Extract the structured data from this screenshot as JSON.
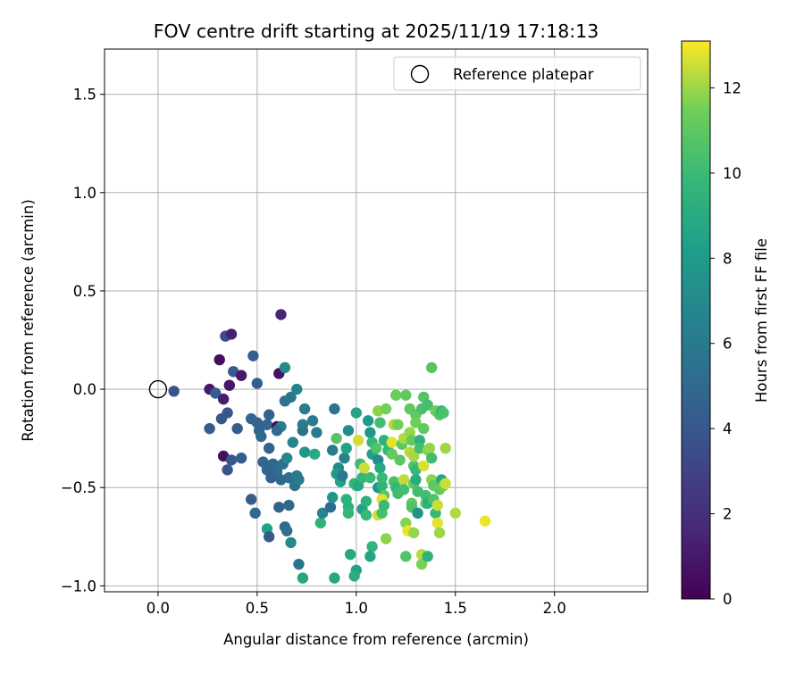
{
  "chart_data": {
    "type": "scatter",
    "title": "FOV centre drift starting at 2025/11/19 17:18:13",
    "xlabel": "Angular distance from reference (arcmin)",
    "ylabel": "Rotation from reference (arcmin)",
    "xlim": [
      -0.27,
      2.47
    ],
    "ylim": [
      -1.03,
      1.73
    ],
    "x_ticks": [
      0.0,
      0.5,
      1.0,
      1.5,
      2.0
    ],
    "x_tick_labels": [
      "0.0",
      "0.5",
      "1.0",
      "1.5",
      "2.0"
    ],
    "y_ticks": [
      -1.0,
      -0.5,
      0.0,
      0.5,
      1.0,
      1.5
    ],
    "y_tick_labels": [
      "−1.0",
      "−0.5",
      "0.0",
      "0.5",
      "1.0",
      "1.5"
    ],
    "grid": true,
    "legend": {
      "position": "top-right",
      "entries": [
        "Reference platepar"
      ]
    },
    "reference_point": {
      "x": 0.0,
      "y": 0.0
    },
    "colorbar": {
      "label": "Hours from first FF file",
      "range": [
        0,
        13.1
      ],
      "ticks": [
        0,
        2,
        4,
        6,
        8,
        10,
        12
      ],
      "tick_labels": [
        "0",
        "2",
        "4",
        "6",
        "8",
        "10",
        "12"
      ],
      "colormap": "viridis"
    },
    "points": [
      [
        0.08,
        -0.01,
        3.8
      ],
      [
        0.26,
        0.0,
        1.0
      ],
      [
        0.29,
        -0.02,
        4.4
      ],
      [
        0.31,
        0.15,
        0.6
      ],
      [
        0.33,
        -0.05,
        1.2
      ],
      [
        0.34,
        0.27,
        3.5
      ],
      [
        0.37,
        0.28,
        1.3
      ],
      [
        0.36,
        0.02,
        0.9
      ],
      [
        0.38,
        0.09,
        4.2
      ],
      [
        0.42,
        0.07,
        1.0
      ],
      [
        0.35,
        -0.12,
        3.9
      ],
      [
        0.32,
        -0.15,
        4.0
      ],
      [
        0.26,
        -0.2,
        4.3
      ],
      [
        0.33,
        -0.34,
        0.6
      ],
      [
        0.35,
        -0.41,
        3.9
      ],
      [
        0.37,
        -0.36,
        4.1
      ],
      [
        0.4,
        -0.2,
        4.3
      ],
      [
        0.42,
        -0.35,
        4.4
      ],
      [
        0.48,
        0.17,
        4.5
      ],
      [
        0.5,
        0.03,
        4.4
      ],
      [
        0.47,
        -0.15,
        4.6
      ],
      [
        0.5,
        -0.17,
        4.7
      ],
      [
        0.51,
        -0.21,
        4.8
      ],
      [
        0.52,
        -0.24,
        5.0
      ],
      [
        0.55,
        -0.18,
        4.8
      ],
      [
        0.56,
        -0.13,
        4.6
      ],
      [
        0.6,
        -0.19,
        0.3
      ],
      [
        0.62,
        0.38,
        1.5
      ],
      [
        0.61,
        0.08,
        0.7
      ],
      [
        0.64,
        0.11,
        7.0
      ],
      [
        0.64,
        -0.06,
        5.5
      ],
      [
        0.67,
        -0.04,
        5.8
      ],
      [
        0.7,
        0.0,
        6.6
      ],
      [
        0.68,
        -0.27,
        6.8
      ],
      [
        0.62,
        -0.19,
        6.5
      ],
      [
        0.6,
        -0.21,
        5.2
      ],
      [
        0.56,
        -0.3,
        4.6
      ],
      [
        0.53,
        -0.37,
        4.8
      ],
      [
        0.58,
        -0.38,
        5.0
      ],
      [
        0.6,
        -0.42,
        5.2
      ],
      [
        0.63,
        -0.38,
        5.4
      ],
      [
        0.65,
        -0.35,
        6.8
      ],
      [
        0.66,
        -0.45,
        5.4
      ],
      [
        0.69,
        -0.49,
        5.6
      ],
      [
        0.7,
        -0.44,
        6.0
      ],
      [
        0.71,
        -0.46,
        6.1
      ],
      [
        0.62,
        -0.46,
        5.0
      ],
      [
        0.57,
        -0.45,
        4.6
      ],
      [
        0.55,
        -0.41,
        4.7
      ],
      [
        0.47,
        -0.56,
        4.3
      ],
      [
        0.49,
        -0.63,
        5.0
      ],
      [
        0.55,
        -0.71,
        8.5
      ],
      [
        0.56,
        -0.75,
        4.3
      ],
      [
        0.61,
        -0.6,
        4.6
      ],
      [
        0.64,
        -0.7,
        5.2
      ],
      [
        0.65,
        -0.72,
        5.3
      ],
      [
        0.66,
        -0.59,
        5.0
      ],
      [
        0.67,
        -0.78,
        6.9
      ],
      [
        0.71,
        -0.89,
        5.6
      ],
      [
        0.73,
        -0.96,
        8.7
      ],
      [
        0.73,
        -0.21,
        5.3
      ],
      [
        0.74,
        -0.1,
        6.3
      ],
      [
        0.73,
        -0.18,
        6.1
      ],
      [
        0.78,
        -0.16,
        6.1
      ],
      [
        0.8,
        -0.22,
        6.2
      ],
      [
        0.74,
        -0.32,
        7.8
      ],
      [
        0.79,
        -0.33,
        9.0
      ],
      [
        0.82,
        -0.68,
        9.5
      ],
      [
        0.83,
        -0.63,
        6.7
      ],
      [
        0.87,
        -0.6,
        5.2
      ],
      [
        0.88,
        -0.55,
        7.7
      ],
      [
        0.88,
        -0.31,
        6.0
      ],
      [
        0.89,
        -0.1,
        5.7
      ],
      [
        0.9,
        -0.25,
        10.8
      ],
      [
        0.91,
        -0.4,
        7.1
      ],
      [
        0.9,
        -0.43,
        8.0
      ],
      [
        0.92,
        -0.47,
        8.4
      ],
      [
        0.93,
        -0.44,
        6.0
      ],
      [
        0.94,
        -0.35,
        6.4
      ],
      [
        0.95,
        -0.3,
        8.5
      ],
      [
        0.96,
        -0.21,
        7.1
      ],
      [
        0.95,
        -0.56,
        9.4
      ],
      [
        0.96,
        -0.6,
        9.3
      ],
      [
        0.96,
        -0.63,
        9.8
      ],
      [
        0.97,
        -0.84,
        8.8
      ],
      [
        0.89,
        -0.96,
        8.7
      ],
      [
        0.99,
        -0.48,
        9.4
      ],
      [
        1.0,
        -0.49,
        10.0
      ],
      [
        1.01,
        -0.49,
        8.8
      ],
      [
        1.0,
        -0.12,
        8.6
      ],
      [
        1.01,
        -0.26,
        12.6
      ],
      [
        1.02,
        -0.38,
        10.1
      ],
      [
        1.03,
        -0.45,
        9.8
      ],
      [
        1.03,
        -0.61,
        8.3
      ],
      [
        1.05,
        -0.57,
        9.4
      ],
      [
        1.05,
        -0.64,
        9.9
      ],
      [
        1.04,
        -0.4,
        12.5
      ],
      [
        1.06,
        -0.16,
        8.0
      ],
      [
        1.07,
        -0.22,
        7.7
      ],
      [
        1.08,
        -0.27,
        9.8
      ],
      [
        1.08,
        -0.33,
        8.4
      ],
      [
        1.07,
        -0.45,
        10.0
      ],
      [
        1.08,
        -0.8,
        9.6
      ],
      [
        1.07,
        -0.85,
        8.6
      ],
      [
        1.0,
        -0.92,
        8.5
      ],
      [
        0.99,
        -0.95,
        9.2
      ],
      [
        1.1,
        -0.3,
        10.6
      ],
      [
        1.11,
        -0.11,
        11.8
      ],
      [
        1.12,
        -0.17,
        10.2
      ],
      [
        1.11,
        -0.36,
        7.2
      ],
      [
        1.12,
        -0.4,
        8.8
      ],
      [
        1.11,
        -0.5,
        7.6
      ],
      [
        1.13,
        -0.49,
        9.5
      ],
      [
        1.14,
        -0.54,
        10.8
      ],
      [
        1.13,
        -0.56,
        12.8
      ],
      [
        1.11,
        -0.64,
        12.6
      ],
      [
        1.13,
        -0.63,
        10.4
      ],
      [
        1.14,
        -0.59,
        10.0
      ],
      [
        1.13,
        -0.45,
        10.0
      ],
      [
        1.14,
        -0.26,
        9.4
      ],
      [
        1.15,
        -0.1,
        11.5
      ],
      [
        1.16,
        -0.31,
        9.8
      ],
      [
        1.15,
        -0.76,
        11.8
      ],
      [
        1.18,
        -0.27,
        12.8
      ],
      [
        1.18,
        -0.33,
        11.2
      ],
      [
        1.19,
        -0.18,
        12.2
      ],
      [
        1.2,
        -0.03,
        11.3
      ],
      [
        1.19,
        -0.47,
        10.5
      ],
      [
        1.2,
        -0.5,
        9.8
      ],
      [
        1.21,
        -0.53,
        10.2
      ],
      [
        1.21,
        -0.18,
        11.5
      ],
      [
        1.22,
        -0.36,
        10.9
      ],
      [
        1.23,
        -0.28,
        11.0
      ],
      [
        1.24,
        -0.25,
        12.2
      ],
      [
        1.24,
        -0.46,
        12.4
      ],
      [
        1.24,
        -0.51,
        10.3
      ],
      [
        1.25,
        -0.03,
        11.1
      ],
      [
        1.25,
        -0.68,
        11.7
      ],
      [
        1.26,
        -0.72,
        12.9
      ],
      [
        1.25,
        -0.85,
        10.7
      ],
      [
        1.27,
        -0.32,
        12.3
      ],
      [
        1.27,
        -0.22,
        11.9
      ],
      [
        1.27,
        -0.1,
        11.0
      ],
      [
        1.28,
        -0.26,
        11.2
      ],
      [
        1.28,
        -0.58,
        11.0
      ],
      [
        1.28,
        -0.6,
        10.6
      ],
      [
        1.29,
        -0.73,
        11.9
      ],
      [
        1.29,
        -0.48,
        11.2
      ],
      [
        1.29,
        -0.39,
        10.6
      ],
      [
        1.29,
        -0.34,
        12.1
      ],
      [
        1.3,
        -0.13,
        11.1
      ],
      [
        1.3,
        -0.17,
        11.4
      ],
      [
        1.3,
        -0.41,
        9.8
      ],
      [
        1.3,
        -0.46,
        9.1
      ],
      [
        1.31,
        -0.52,
        10.2
      ],
      [
        1.31,
        -0.63,
        7.5
      ],
      [
        1.32,
        -0.26,
        9.5
      ],
      [
        1.32,
        -0.3,
        10.2
      ],
      [
        1.33,
        -0.84,
        12.3
      ],
      [
        1.33,
        -0.89,
        11.6
      ],
      [
        1.33,
        -0.1,
        10.4
      ],
      [
        1.34,
        -0.04,
        10.7
      ],
      [
        1.34,
        -0.2,
        11.1
      ],
      [
        1.34,
        -0.39,
        12.7
      ],
      [
        1.35,
        -0.58,
        11.5
      ],
      [
        1.35,
        -0.54,
        10.2
      ],
      [
        1.36,
        -0.58,
        9.3
      ],
      [
        1.36,
        -0.85,
        9.4
      ],
      [
        1.36,
        -0.08,
        10.3
      ],
      [
        1.36,
        -0.31,
        11.7
      ],
      [
        1.37,
        -0.3,
        11.9
      ],
      [
        1.38,
        -0.46,
        11.8
      ],
      [
        1.38,
        0.11,
        10.8
      ],
      [
        1.38,
        -0.35,
        10.1
      ],
      [
        1.39,
        -0.49,
        11.0
      ],
      [
        1.39,
        -0.56,
        10.6
      ],
      [
        1.4,
        -0.63,
        9.9
      ],
      [
        1.4,
        -0.11,
        11.4
      ],
      [
        1.41,
        -0.59,
        12.5
      ],
      [
        1.41,
        -0.68,
        12.8
      ],
      [
        1.42,
        -0.73,
        12.0
      ],
      [
        1.42,
        -0.51,
        11.1
      ],
      [
        1.42,
        -0.13,
        10.6
      ],
      [
        1.43,
        -0.46,
        8.8
      ],
      [
        1.43,
        -0.11,
        9.7
      ],
      [
        1.44,
        -0.12,
        10.5
      ],
      [
        1.44,
        -0.49,
        11.4
      ],
      [
        1.45,
        -0.3,
        12.0
      ],
      [
        1.45,
        -0.48,
        12.5
      ],
      [
        1.5,
        -0.63,
        12.2
      ],
      [
        1.65,
        -0.67,
        12.9
      ]
    ]
  }
}
